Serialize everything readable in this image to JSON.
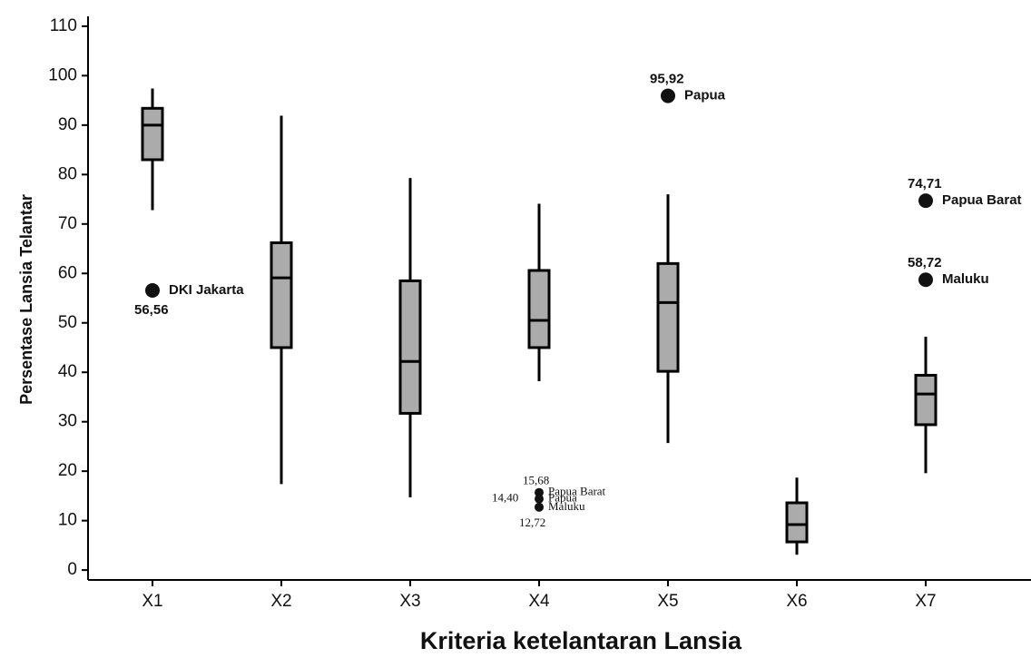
{
  "chart_data": {
    "type": "box",
    "y_label": "Persentase Lansia Telantar",
    "x_label": "Kriteria ketelantaran Lansia",
    "categories": [
      "X1",
      "X2",
      "X3",
      "X4",
      "X5",
      "X6",
      "X7"
    ],
    "color": "#ababab",
    "ylim": [
      -2,
      112
    ],
    "yticks": [
      0,
      10,
      20,
      30,
      40,
      50,
      60,
      70,
      80,
      90,
      100,
      110
    ],
    "grid": false,
    "boxes": [
      {
        "low": 72.8,
        "q1": 83,
        "median": 90,
        "q3": 93.4,
        "high": 97.4,
        "outliers": [
          {
            "value": 56.56,
            "value_label": "56,56",
            "name": "DKI Jakarta"
          }
        ]
      },
      {
        "low": 17.4,
        "q1": 45,
        "median": 59.1,
        "q3": 66.2,
        "high": 91.9,
        "outliers": []
      },
      {
        "low": 14.7,
        "q1": 31.7,
        "median": 42.2,
        "q3": 58.5,
        "high": 79.3,
        "outliers": []
      },
      {
        "low": 38.2,
        "q1": 45,
        "median": 50.5,
        "q3": 60.6,
        "high": 74.1,
        "outliers": [
          {
            "value": 15.68,
            "value_label": "15,68",
            "name": "Papua Barat"
          },
          {
            "value": 14.4,
            "value_label": "14,40",
            "name": "Papua"
          },
          {
            "value": 12.72,
            "value_label": "12,72",
            "name": "Maluku"
          }
        ]
      },
      {
        "low": 25.7,
        "q1": 40.2,
        "median": 54.1,
        "q3": 62,
        "high": 76,
        "outliers": [
          {
            "value": 95.92,
            "value_label": "95,92",
            "name": "Papua"
          }
        ]
      },
      {
        "low": 3.1,
        "q1": 5.7,
        "median": 9.2,
        "q3": 13.6,
        "high": 18.7,
        "outliers": []
      },
      {
        "low": 19.6,
        "q1": 29.4,
        "median": 35.6,
        "q3": 39.4,
        "high": 47.2,
        "outliers": [
          {
            "value": 74.71,
            "value_label": "74,71",
            "name": "Papua Barat"
          },
          {
            "value": 58.72,
            "value_label": "58,72",
            "name": "Maluku"
          }
        ]
      }
    ]
  }
}
